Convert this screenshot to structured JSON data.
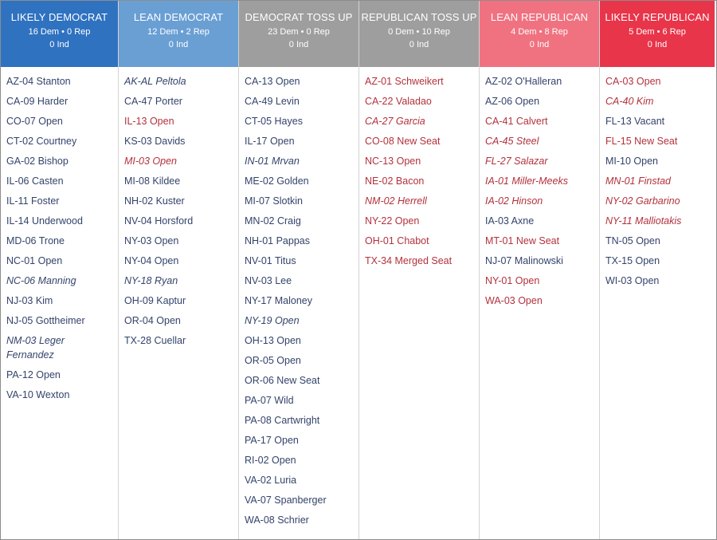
{
  "colors": {
    "likely_democrat": "#2f72c0",
    "lean_democrat": "#6a9fd4",
    "democrat_toss_up": "#9e9e9e",
    "republican_toss_up": "#9e9e9e",
    "lean_republican": "#f07280",
    "likely_republican": "#e8354a",
    "dem_text": "#34436b",
    "rep_text": "#b3313c"
  },
  "columns": [
    {
      "title": "LIKELY DEMOCRAT",
      "counts": "16 Dem • 0 Rep",
      "ind": "0 Ind",
      "color_key": "likely_democrat",
      "races": [
        {
          "label": "AZ-04 Stanton",
          "party": "dem",
          "italic": false
        },
        {
          "label": "CA-09 Harder",
          "party": "dem",
          "italic": false
        },
        {
          "label": "CO-07 Open",
          "party": "dem",
          "italic": false
        },
        {
          "label": "CT-02 Courtney",
          "party": "dem",
          "italic": false
        },
        {
          "label": "GA-02 Bishop",
          "party": "dem",
          "italic": false
        },
        {
          "label": "IL-06 Casten",
          "party": "dem",
          "italic": false
        },
        {
          "label": "IL-11 Foster",
          "party": "dem",
          "italic": false
        },
        {
          "label": "IL-14 Underwood",
          "party": "dem",
          "italic": false
        },
        {
          "label": "MD-06 Trone",
          "party": "dem",
          "italic": false
        },
        {
          "label": "NC-01 Open",
          "party": "dem",
          "italic": false
        },
        {
          "label": "NC-06 Manning",
          "party": "dem",
          "italic": true
        },
        {
          "label": "NJ-03 Kim",
          "party": "dem",
          "italic": false
        },
        {
          "label": "NJ-05 Gottheimer",
          "party": "dem",
          "italic": false
        },
        {
          "label": "NM-03 Leger Fernandez",
          "party": "dem",
          "italic": true
        },
        {
          "label": "PA-12 Open",
          "party": "dem",
          "italic": false
        },
        {
          "label": "VA-10 Wexton",
          "party": "dem",
          "italic": false
        }
      ]
    },
    {
      "title": "LEAN DEMOCRAT",
      "counts": "12 Dem • 2 Rep",
      "ind": "0 Ind",
      "color_key": "lean_democrat",
      "races": [
        {
          "label": "AK-AL Peltola",
          "party": "dem",
          "italic": true
        },
        {
          "label": "CA-47 Porter",
          "party": "dem",
          "italic": false
        },
        {
          "label": "IL-13 Open",
          "party": "rep",
          "italic": false
        },
        {
          "label": "KS-03 Davids",
          "party": "dem",
          "italic": false
        },
        {
          "label": "MI-03 Open",
          "party": "rep",
          "italic": true
        },
        {
          "label": "MI-08 Kildee",
          "party": "dem",
          "italic": false
        },
        {
          "label": "NH-02 Kuster",
          "party": "dem",
          "italic": false
        },
        {
          "label": "NV-04 Horsford",
          "party": "dem",
          "italic": false
        },
        {
          "label": "NY-03 Open",
          "party": "dem",
          "italic": false
        },
        {
          "label": "NY-04 Open",
          "party": "dem",
          "italic": false
        },
        {
          "label": "NY-18 Ryan",
          "party": "dem",
          "italic": true
        },
        {
          "label": "OH-09 Kaptur",
          "party": "dem",
          "italic": false
        },
        {
          "label": "OR-04 Open",
          "party": "dem",
          "italic": false
        },
        {
          "label": "TX-28 Cuellar",
          "party": "dem",
          "italic": false
        }
      ]
    },
    {
      "title": "DEMOCRAT TOSS UP",
      "counts": "23 Dem • 0 Rep",
      "ind": "0 Ind",
      "color_key": "democrat_toss_up",
      "races": [
        {
          "label": "CA-13 Open",
          "party": "dem",
          "italic": false
        },
        {
          "label": "CA-49 Levin",
          "party": "dem",
          "italic": false
        },
        {
          "label": "CT-05 Hayes",
          "party": "dem",
          "italic": false
        },
        {
          "label": "IL-17 Open",
          "party": "dem",
          "italic": false
        },
        {
          "label": "IN-01 Mrvan",
          "party": "dem",
          "italic": true
        },
        {
          "label": "ME-02 Golden",
          "party": "dem",
          "italic": false
        },
        {
          "label": "MI-07 Slotkin",
          "party": "dem",
          "italic": false
        },
        {
          "label": "MN-02 Craig",
          "party": "dem",
          "italic": false
        },
        {
          "label": "NH-01 Pappas",
          "party": "dem",
          "italic": false
        },
        {
          "label": "NV-01 Titus",
          "party": "dem",
          "italic": false
        },
        {
          "label": "NV-03 Lee",
          "party": "dem",
          "italic": false
        },
        {
          "label": "NY-17 Maloney",
          "party": "dem",
          "italic": false
        },
        {
          "label": "NY-19 Open",
          "party": "dem",
          "italic": true
        },
        {
          "label": "OH-13 Open",
          "party": "dem",
          "italic": false
        },
        {
          "label": "OR-05 Open",
          "party": "dem",
          "italic": false
        },
        {
          "label": "OR-06 New Seat",
          "party": "dem",
          "italic": false
        },
        {
          "label": "PA-07 Wild",
          "party": "dem",
          "italic": false
        },
        {
          "label": "PA-08 Cartwright",
          "party": "dem",
          "italic": false
        },
        {
          "label": "PA-17 Open",
          "party": "dem",
          "italic": false
        },
        {
          "label": "RI-02 Open",
          "party": "dem",
          "italic": false
        },
        {
          "label": "VA-02 Luria",
          "party": "dem",
          "italic": false
        },
        {
          "label": "VA-07 Spanberger",
          "party": "dem",
          "italic": false
        },
        {
          "label": "WA-08 Schrier",
          "party": "dem",
          "italic": false
        }
      ]
    },
    {
      "title": "REPUBLICAN TOSS UP",
      "counts": "0 Dem • 10 Rep",
      "ind": "0 Ind",
      "color_key": "republican_toss_up",
      "races": [
        {
          "label": "AZ-01 Schweikert",
          "party": "rep",
          "italic": false
        },
        {
          "label": "CA-22 Valadao",
          "party": "rep",
          "italic": false
        },
        {
          "label": "CA-27 Garcia",
          "party": "rep",
          "italic": true
        },
        {
          "label": "CO-08 New Seat",
          "party": "rep",
          "italic": false
        },
        {
          "label": "NC-13 Open",
          "party": "rep",
          "italic": false
        },
        {
          "label": "NE-02 Bacon",
          "party": "rep",
          "italic": false
        },
        {
          "label": "NM-02 Herrell",
          "party": "rep",
          "italic": true
        },
        {
          "label": "NY-22 Open",
          "party": "rep",
          "italic": false
        },
        {
          "label": "OH-01 Chabot",
          "party": "rep",
          "italic": false
        },
        {
          "label": "TX-34 Merged Seat",
          "party": "rep",
          "italic": false
        }
      ]
    },
    {
      "title": "LEAN REPUBLICAN",
      "counts": "4 Dem • 8 Rep",
      "ind": "0 Ind",
      "color_key": "lean_republican",
      "races": [
        {
          "label": "AZ-02 O'Halleran",
          "party": "dem",
          "italic": false
        },
        {
          "label": "AZ-06 Open",
          "party": "dem",
          "italic": false
        },
        {
          "label": "CA-41 Calvert",
          "party": "rep",
          "italic": false
        },
        {
          "label": "CA-45 Steel",
          "party": "rep",
          "italic": true
        },
        {
          "label": "FL-27 Salazar",
          "party": "rep",
          "italic": true
        },
        {
          "label": "IA-01 Miller-Meeks",
          "party": "rep",
          "italic": true
        },
        {
          "label": "IA-02 Hinson",
          "party": "rep",
          "italic": true
        },
        {
          "label": "IA-03 Axne",
          "party": "dem",
          "italic": false
        },
        {
          "label": "MT-01 New Seat",
          "party": "rep",
          "italic": false
        },
        {
          "label": "NJ-07 Malinowski",
          "party": "dem",
          "italic": false
        },
        {
          "label": "NY-01 Open",
          "party": "rep",
          "italic": false
        },
        {
          "label": "WA-03 Open",
          "party": "rep",
          "italic": false
        }
      ]
    },
    {
      "title": "LIKELY REPUBLICAN",
      "counts": "5 Dem • 6 Rep",
      "ind": "0 Ind",
      "color_key": "likely_republican",
      "races": [
        {
          "label": "CA-03 Open",
          "party": "rep",
          "italic": false
        },
        {
          "label": "CA-40 Kim",
          "party": "rep",
          "italic": true
        },
        {
          "label": "FL-13 Vacant",
          "party": "dem",
          "italic": false
        },
        {
          "label": "FL-15 New Seat",
          "party": "rep",
          "italic": false
        },
        {
          "label": "MI-10 Open",
          "party": "dem",
          "italic": false
        },
        {
          "label": "MN-01 Finstad",
          "party": "rep",
          "italic": true
        },
        {
          "label": "NY-02 Garbarino",
          "party": "rep",
          "italic": true
        },
        {
          "label": "NY-11 Malliotakis",
          "party": "rep",
          "italic": true
        },
        {
          "label": "TN-05 Open",
          "party": "dem",
          "italic": false
        },
        {
          "label": "TX-15 Open",
          "party": "dem",
          "italic": false
        },
        {
          "label": "WI-03 Open",
          "party": "dem",
          "italic": false
        }
      ]
    }
  ]
}
